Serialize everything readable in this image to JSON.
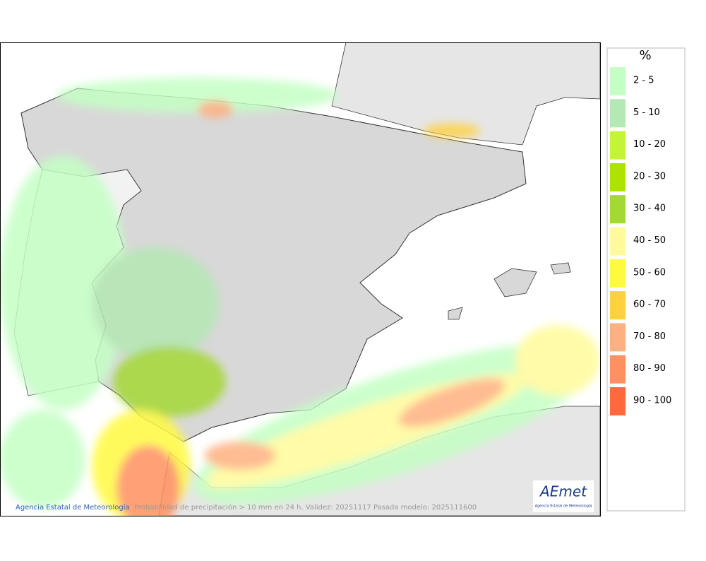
{
  "legend": {
    "title": "%",
    "items": [
      {
        "label": "2 - 5",
        "color": "#c4ffc4"
      },
      {
        "label": "5 - 10",
        "color": "#b4e8b4"
      },
      {
        "label": "10 - 20",
        "color": "#c4f438"
      },
      {
        "label": "20 - 30",
        "color": "#ace400"
      },
      {
        "label": "30 - 40",
        "color": "#a4d834"
      },
      {
        "label": "40 - 50",
        "color": "#fffb9a"
      },
      {
        "label": "50 - 60",
        "color": "#fffa40"
      },
      {
        "label": "60 - 70",
        "color": "#ffd040"
      },
      {
        "label": "70 - 80",
        "color": "#ffb080"
      },
      {
        "label": "80 - 90",
        "color": "#ff9060"
      },
      {
        "label": "90 - 100",
        "color": "#ff6a3a"
      }
    ]
  },
  "footer": {
    "agency": "Agencia Estatal de Meteorología",
    "caption": "Probabilidad de precipitación > 10 mm en 24 h. Validez: 20251117 Pasada modelo: 2025111600"
  },
  "logo": {
    "name": "AEmet",
    "subtitle": "Agencia Estatal de Meteorología"
  }
}
